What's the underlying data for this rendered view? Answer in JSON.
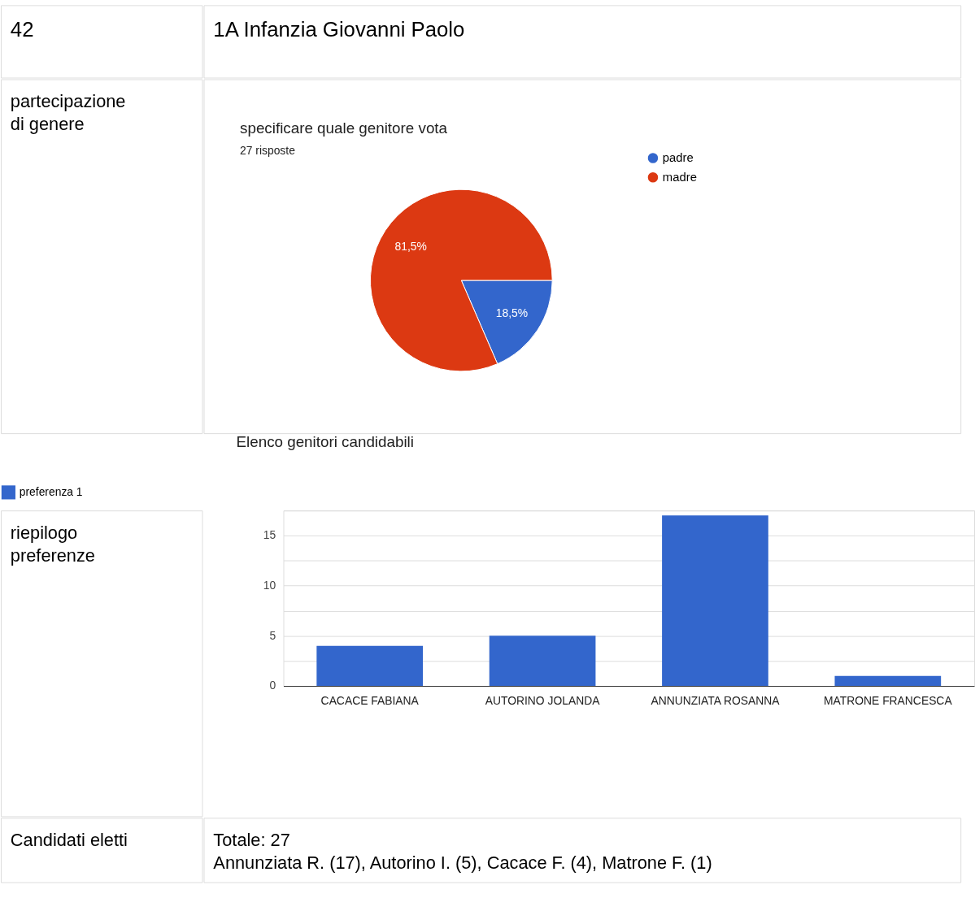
{
  "chart_data": [
    {
      "type": "other",
      "annotations": [
        "42",
        "1A Infanzia Giovanni Paolo",
        "partecipazione\ndi genere",
        "riepilogo\npreferenze",
        "Candidati eletti",
        "Totale: 27\nAnnunziata R. (17), Autorino I. (5), Cacace F. (4), Matrone F. (1)"
      ]
    },
    {
      "type": "pie",
      "title": "specificare quale genitore vota",
      "subtitle": "27 risposte",
      "categories": [
        "padre",
        "madre"
      ],
      "values": [
        18.5,
        81.5
      ],
      "colors": [
        "#3366cc",
        "#dc3912"
      ],
      "value_labels": [
        "18,5%",
        "81,5%"
      ],
      "legend": "top right"
    },
    {
      "type": "bar",
      "title": "Elenco genitori candidabili",
      "categories": [
        "CACACE FABIANA",
        "AUTORINO JOLANDA",
        "ANNUNZIATA ROSANNA",
        "MATRONE FRANCESCA"
      ],
      "series": [
        {
          "name": "preferenza 1",
          "color": "#3366cc",
          "values": [
            4,
            5,
            17,
            1
          ]
        }
      ],
      "ylim": [
        0,
        17.5
      ],
      "yticks": [
        0,
        {
          "value": 2.5,
          "label": null
        },
        5,
        {
          "value": 7.5,
          "label": null
        },
        10,
        {
          "value": 12.5,
          "label": null
        },
        15,
        {
          "value": 17.5,
          "label": null
        }
      ],
      "grid": "y",
      "legend": "top left"
    }
  ]
}
